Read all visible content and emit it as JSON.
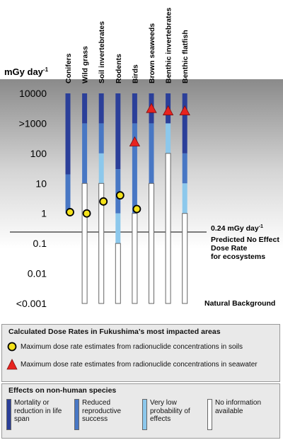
{
  "chart_data": {
    "type": "range-bar",
    "ylabel": "mGy day",
    "ylabel_superscript": "-1",
    "y_scale": "log",
    "y_ticks": [
      "10000",
      ">1000",
      "100",
      "10",
      "1",
      "0.1",
      "0.01",
      "<0.001"
    ],
    "y_tick_values": [
      10000,
      1000,
      100,
      10,
      1,
      0.1,
      0.01,
      0.001
    ],
    "categories": [
      "Conifers",
      "Wild grass",
      "Soil invertebrates",
      "Rodents",
      "Birds",
      "Brown seaweeds",
      "Benthic invertebrates",
      "Benthic flatfish"
    ],
    "effect_colors": {
      "mortality": "#2b3f99",
      "reproductive": "#4877c4",
      "low_probability": "#8cc8ec",
      "no_information": "#ffffff"
    },
    "series": [
      {
        "category": "Conifers",
        "segments": [
          {
            "effect": "mortality",
            "from": 20,
            "to": 10000
          },
          {
            "effect": "reproductive",
            "from": 1,
            "to": 20
          }
        ]
      },
      {
        "category": "Wild grass",
        "segments": [
          {
            "effect": "mortality",
            "from": 1000,
            "to": 10000
          },
          {
            "effect": "reproductive",
            "from": 10,
            "to": 1000
          },
          {
            "effect": "no_information",
            "from": 0.001,
            "to": 10
          }
        ]
      },
      {
        "category": "Soil invertebrates",
        "segments": [
          {
            "effect": "mortality",
            "from": 1000,
            "to": 10000
          },
          {
            "effect": "reproductive",
            "from": 100,
            "to": 1000
          },
          {
            "effect": "low_probability",
            "from": 10,
            "to": 100
          },
          {
            "effect": "no_information",
            "from": 0.001,
            "to": 10
          }
        ]
      },
      {
        "category": "Rodents",
        "segments": [
          {
            "effect": "mortality",
            "from": 30,
            "to": 10000
          },
          {
            "effect": "reproductive",
            "from": 1,
            "to": 30
          },
          {
            "effect": "low_probability",
            "from": 0.1,
            "to": 1
          },
          {
            "effect": "no_information",
            "from": 0.001,
            "to": 0.1
          }
        ]
      },
      {
        "category": "Birds",
        "segments": [
          {
            "effect": "mortality",
            "from": 1000,
            "to": 10000
          },
          {
            "effect": "reproductive",
            "from": 1,
            "to": 1000
          },
          {
            "effect": "no_information",
            "from": 0.001,
            "to": 1
          }
        ]
      },
      {
        "category": "Brown seaweeds",
        "segments": [
          {
            "effect": "mortality",
            "from": 1000,
            "to": 10000
          },
          {
            "effect": "reproductive",
            "from": 10,
            "to": 1000
          },
          {
            "effect": "no_information",
            "from": 0.001,
            "to": 10
          }
        ]
      },
      {
        "category": "Benthic invertebrates",
        "segments": [
          {
            "effect": "mortality",
            "from": 1000,
            "to": 10000
          },
          {
            "effect": "low_probability",
            "from": 100,
            "to": 1000
          },
          {
            "effect": "no_information",
            "from": 0.001,
            "to": 100
          }
        ]
      },
      {
        "category": "Benthic flatfish",
        "segments": [
          {
            "effect": "mortality",
            "from": 100,
            "to": 10000
          },
          {
            "effect": "reproductive",
            "from": 10,
            "to": 100
          },
          {
            "effect": "low_probability",
            "from": 1,
            "to": 10
          },
          {
            "effect": "no_information",
            "from": 0.001,
            "to": 1
          }
        ]
      }
    ],
    "soil_estimates": [
      {
        "category": "Conifers",
        "value": 1.1
      },
      {
        "category": "Wild grass",
        "value": 1.0
      },
      {
        "category": "Soil invertebrates",
        "value": 2.5
      },
      {
        "category": "Rodents",
        "value": 4
      },
      {
        "category": "Birds",
        "value": 1.4
      }
    ],
    "seawater_estimates": [
      {
        "category": "Birds",
        "value": 230
      },
      {
        "category": "Brown seaweeds",
        "value": 3000
      },
      {
        "category": "Benthic invertebrates",
        "value": 2500
      },
      {
        "category": "Benthic flatfish",
        "value": 2500
      }
    ],
    "reference_line": {
      "value": 0.24,
      "label": "0.24 mGy day",
      "label_superscript": "-1",
      "description": [
        "Predicted No Effect",
        "Dose Rate",
        "for ecosystems"
      ]
    },
    "annotation": "Natural Background"
  },
  "doses_legend": {
    "title": "Calculated Dose Rates in Fukushima’s most impacted areas",
    "soil_label": "Maximum dose rate estimates from radionuclide concentrations in soils",
    "seawater_label": "Maximum dose rate estimates from radionuclide concentrations in seawater",
    "soil_color": "#f4e21a",
    "seawater_color": "#e8231f"
  },
  "effects_legend": {
    "title": "Effects on non-human species",
    "items": [
      {
        "key": "mortality",
        "label": "Mortality or reduction in life span"
      },
      {
        "key": "reproductive",
        "label": "Reduced reproductive success"
      },
      {
        "key": "low_probability",
        "label": "Very low probability of effects"
      },
      {
        "key": "no_information",
        "label": "No information available"
      }
    ]
  }
}
